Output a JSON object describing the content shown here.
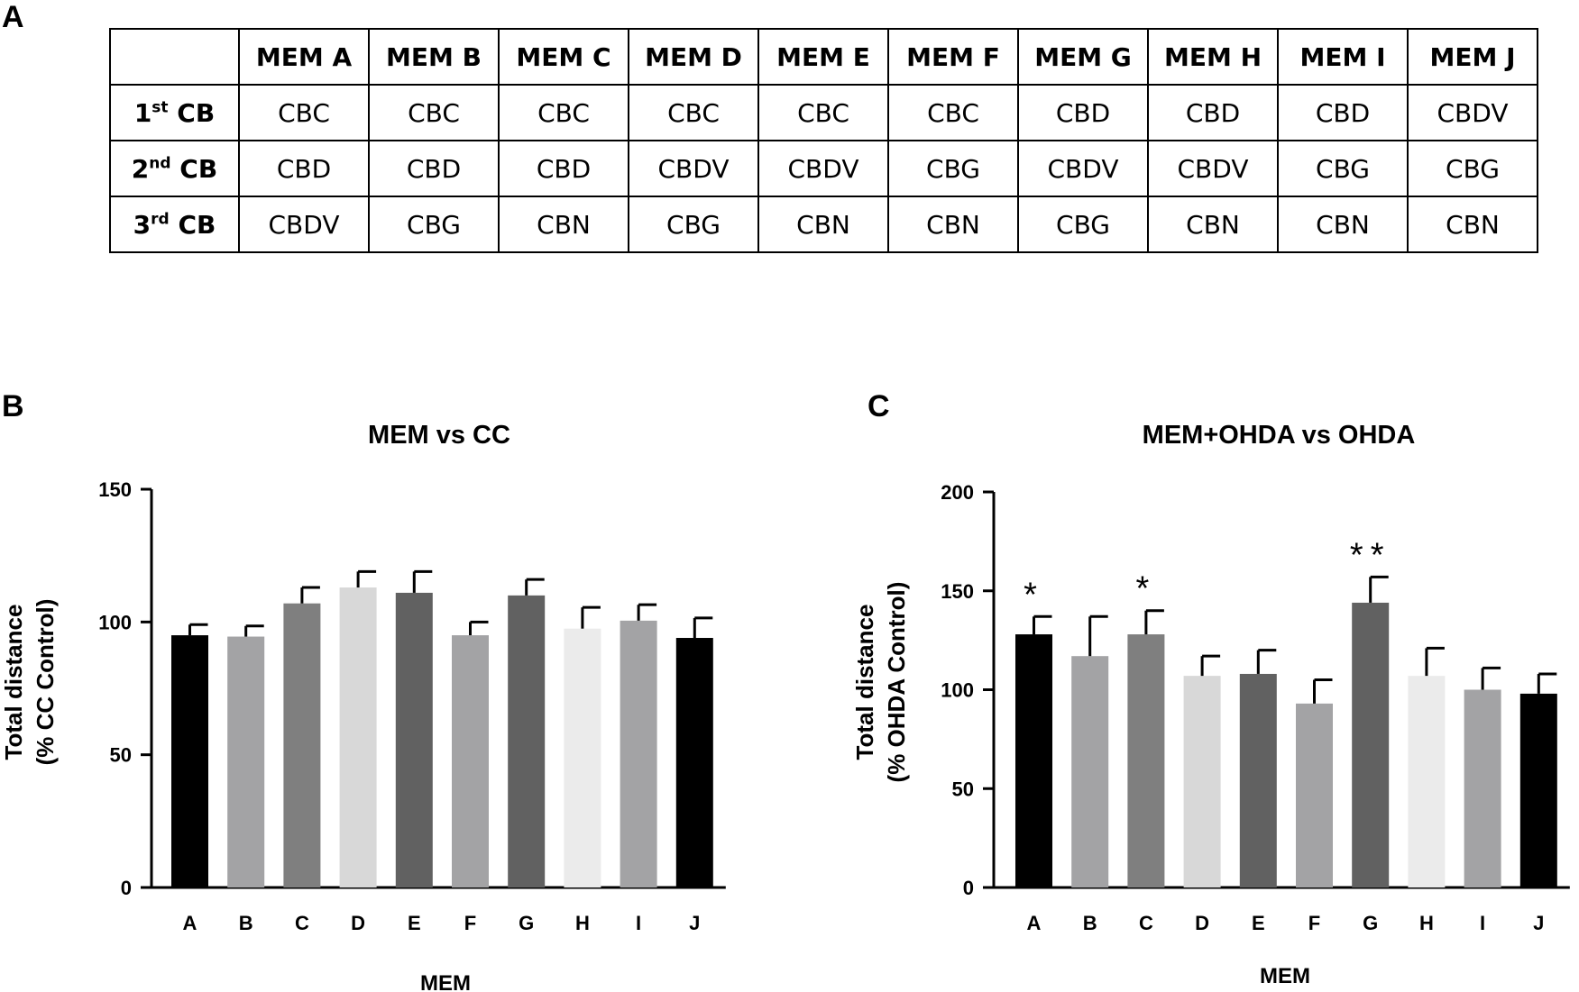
{
  "panels": {
    "a": "A",
    "b": "B",
    "c": "C"
  },
  "table": {
    "columns": [
      "MEM A",
      "MEM B",
      "MEM C",
      "MEM D",
      "MEM E",
      "MEM F",
      "MEM G",
      "MEM H",
      "MEM I",
      "MEM J"
    ],
    "rows": [
      {
        "num": "1",
        "sup": "st",
        "suffix": " CB",
        "cells": [
          "CBC",
          "CBC",
          "CBC",
          "CBC",
          "CBC",
          "CBC",
          "CBD",
          "CBD",
          "CBD",
          "CBDV"
        ]
      },
      {
        "num": "2",
        "sup": "nd",
        "suffix": " CB",
        "cells": [
          "CBD",
          "CBD",
          "CBD",
          "CBDV",
          "CBDV",
          "CBG",
          "CBDV",
          "CBDV",
          "CBG",
          "CBG"
        ]
      },
      {
        "num": "3",
        "sup": "rd",
        "suffix": " CB",
        "cells": [
          "CBDV",
          "CBG",
          "CBN",
          "CBG",
          "CBN",
          "CBN",
          "CBG",
          "CBN",
          "CBN",
          "CBN"
        ]
      }
    ]
  },
  "chart_data": [
    {
      "type": "bar",
      "title": "MEM vs CC",
      "xlabel": "MEM",
      "ylabel": [
        "Total distance",
        "(% CC Control)"
      ],
      "categories": [
        "A",
        "B",
        "C",
        "D",
        "E",
        "F",
        "G",
        "H",
        "I",
        "J"
      ],
      "values": [
        95,
        94.5,
        107,
        113,
        111,
        95,
        110,
        97.5,
        100.5,
        94
      ],
      "errors": [
        4,
        4,
        6,
        6,
        8,
        5,
        6,
        8,
        6,
        7.5
      ],
      "colors": [
        "#000000",
        "#a3a3a5",
        "#7f7f7f",
        "#d8d8d8",
        "#616161",
        "#a3a3a5",
        "#616161",
        "#ebebeb",
        "#a3a3a5",
        "#000000"
      ],
      "significance": [
        "",
        "",
        "",
        "",
        "",
        "",
        "",
        "",
        "",
        ""
      ],
      "ylim": [
        0,
        150
      ],
      "yticks": [
        0,
        50,
        100,
        150
      ]
    },
    {
      "type": "bar",
      "title": "MEM+OHDA vs OHDA",
      "xlabel": "MEM",
      "ylabel": [
        "Total distance",
        "(% OHDA Control)"
      ],
      "categories": [
        "A",
        "B",
        "C",
        "D",
        "E",
        "F",
        "G",
        "H",
        "I",
        "J"
      ],
      "values": [
        128,
        117,
        128,
        107,
        108,
        93,
        144,
        107,
        100,
        98
      ],
      "errors": [
        9,
        20,
        12,
        10,
        12,
        12,
        13,
        14,
        11,
        10
      ],
      "colors": [
        "#000000",
        "#a3a3a5",
        "#7f7f7f",
        "#d8d8d8",
        "#616161",
        "#a3a3a5",
        "#616161",
        "#ebebeb",
        "#a3a3a5",
        "#000000"
      ],
      "significance": [
        "*",
        "",
        "*",
        "",
        "",
        "",
        "**",
        "",
        "",
        ""
      ],
      "ylim": [
        0,
        200
      ],
      "yticks": [
        0,
        50,
        100,
        150,
        200
      ]
    }
  ]
}
